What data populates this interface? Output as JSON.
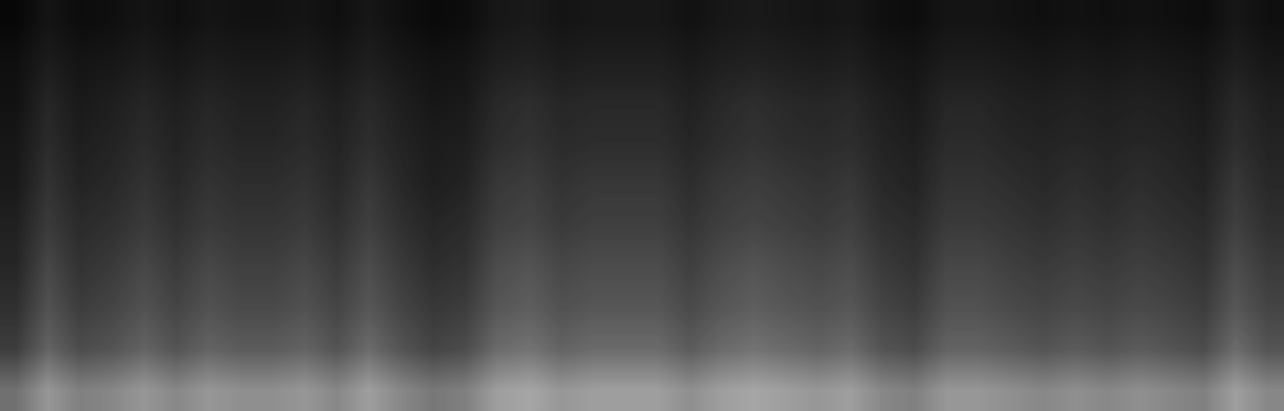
{
  "chart_data": {
    "type": "heatmap",
    "color": "gray",
    "tick_labels": false,
    "grid": false,
    "color_range": [
      0,
      100
    ],
    "cells": [
      [
        3,
        8,
        5,
        6,
        8,
        6,
        8,
        7,
        7,
        8,
        6,
        9,
        6,
        4,
        5,
        9,
        10,
        8,
        9,
        9,
        9,
        7,
        9,
        10,
        9,
        8,
        9,
        6,
        5,
        8,
        8,
        7,
        6,
        7,
        6,
        7,
        6,
        5,
        9,
        6
      ],
      [
        6,
        11,
        8,
        9,
        11,
        9,
        11,
        10,
        10,
        11,
        9,
        12,
        9,
        7,
        8,
        12,
        13,
        11,
        12,
        12,
        12,
        10,
        12,
        13,
        12,
        11,
        12,
        9,
        8,
        11,
        11,
        10,
        9,
        10,
        9,
        10,
        9,
        8,
        12,
        9
      ],
      [
        7,
        15,
        10,
        12,
        15,
        12,
        15,
        13,
        13,
        15,
        12,
        16,
        12,
        9,
        10,
        16,
        18,
        15,
        16,
        16,
        16,
        13,
        16,
        18,
        16,
        15,
        16,
        12,
        10,
        15,
        15,
        13,
        12,
        13,
        12,
        13,
        12,
        10,
        16,
        12
      ],
      [
        9,
        17,
        12,
        14,
        17,
        14,
        17,
        15,
        15,
        17,
        14,
        18,
        14,
        11,
        12,
        18,
        20,
        17,
        18,
        18,
        18,
        15,
        18,
        20,
        18,
        17,
        18,
        14,
        12,
        17,
        17,
        15,
        14,
        15,
        14,
        15,
        14,
        12,
        18,
        14
      ],
      [
        10,
        20,
        14,
        16,
        20,
        16,
        20,
        18,
        18,
        20,
        16,
        22,
        16,
        12,
        14,
        22,
        24,
        20,
        22,
        22,
        22,
        18,
        22,
        24,
        22,
        20,
        22,
        16,
        14,
        20,
        20,
        18,
        16,
        18,
        16,
        18,
        16,
        14,
        22,
        16
      ],
      [
        13,
        23,
        17,
        19,
        23,
        19,
        23,
        21,
        21,
        23,
        19,
        25,
        19,
        15,
        17,
        25,
        27,
        23,
        25,
        25,
        25,
        21,
        25,
        27,
        25,
        23,
        25,
        19,
        17,
        23,
        23,
        21,
        19,
        21,
        19,
        21,
        19,
        17,
        25,
        19
      ],
      [
        15,
        28,
        20,
        23,
        28,
        23,
        28,
        25,
        25,
        28,
        23,
        30,
        23,
        18,
        20,
        30,
        33,
        28,
        30,
        30,
        30,
        25,
        30,
        33,
        30,
        28,
        30,
        23,
        20,
        28,
        28,
        25,
        23,
        25,
        23,
        25,
        23,
        20,
        30,
        23
      ],
      [
        19,
        32,
        24,
        27,
        32,
        27,
        32,
        29,
        29,
        32,
        27,
        34,
        27,
        22,
        24,
        34,
        37,
        32,
        34,
        34,
        34,
        29,
        34,
        37,
        34,
        32,
        34,
        27,
        24,
        32,
        32,
        29,
        27,
        29,
        27,
        29,
        27,
        24,
        34,
        27
      ],
      [
        24,
        39,
        30,
        33,
        39,
        33,
        39,
        36,
        36,
        39,
        33,
        42,
        33,
        27,
        30,
        42,
        45,
        39,
        42,
        42,
        42,
        36,
        42,
        45,
        42,
        39,
        42,
        33,
        30,
        39,
        39,
        36,
        33,
        36,
        33,
        36,
        33,
        30,
        42,
        33
      ],
      [
        44,
        59,
        50,
        53,
        59,
        53,
        59,
        56,
        56,
        59,
        53,
        62,
        53,
        47,
        50,
        62,
        65,
        59,
        62,
        62,
        62,
        56,
        62,
        65,
        62,
        59,
        62,
        53,
        50,
        59,
        59,
        56,
        53,
        56,
        53,
        56,
        53,
        50,
        62,
        53
      ]
    ]
  }
}
